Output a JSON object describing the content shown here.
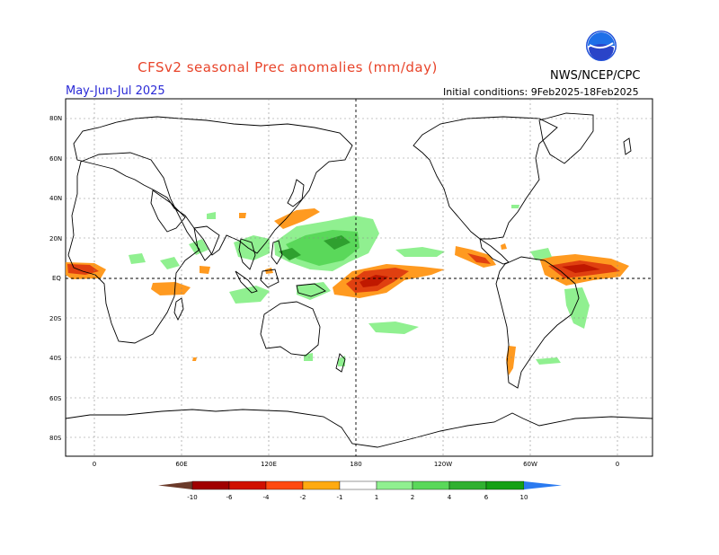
{
  "header": {
    "title": "CFSv2 seasonal Prec anomalies (mm/day)",
    "agency": "NWS/NCEP/CPC",
    "logo_text": "NOAA",
    "period": "May-Jun-Jul 2025",
    "initial_conditions": "Initial conditions: 9Feb2025-18Feb2025"
  },
  "map": {
    "lat_labels": [
      "80N",
      "60N",
      "40N",
      "20N",
      "EQ",
      "20S",
      "40S",
      "60S",
      "80S"
    ],
    "lon_labels": [
      "0",
      "60E",
      "120E",
      "180",
      "120W",
      "60W",
      "0"
    ],
    "grid": true
  },
  "colorbar": {
    "labels": [
      "-10",
      "-6",
      "-4",
      "-2",
      "-1",
      "1",
      "2",
      "4",
      "6",
      "10"
    ],
    "colors": [
      "#6b3a2a",
      "#a00000",
      "#d01000",
      "#ff4a10",
      "#ff8a10",
      "#ffaa10",
      "#ffffff",
      "#90f090",
      "#5ad85a",
      "#30b030",
      "#15a015",
      "#108a10",
      "#2a7af0"
    ]
  },
  "colors": {
    "title": "#e8442a",
    "period": "#2a2ad6",
    "dry_strong": "#e04010",
    "dry_dark": "#c01800",
    "dry_light": "#ff9a20",
    "wet_light": "#90f090",
    "wet_mid": "#5ad85a",
    "wet_dark": "#2fa02f"
  }
}
